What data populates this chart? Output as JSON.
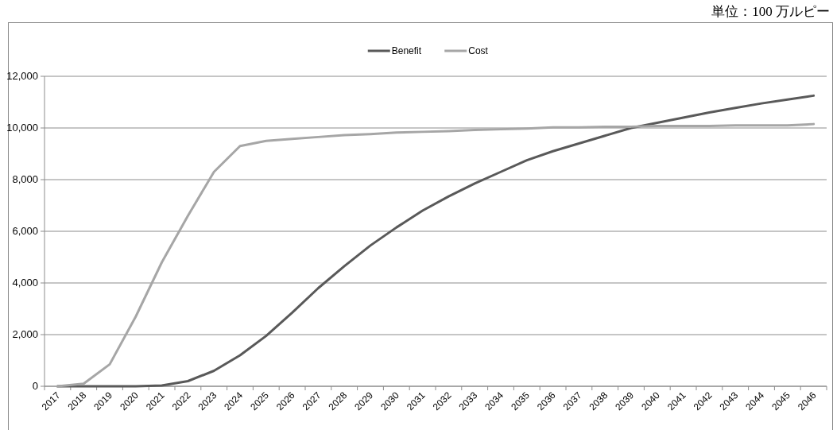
{
  "chart_data": {
    "type": "line",
    "annotations": [
      "単位：100 万ルピー"
    ],
    "categories": [
      "2017",
      "2018",
      "2019",
      "2020",
      "2021",
      "2022",
      "2023",
      "2024",
      "2025",
      "2026",
      "2027",
      "2028",
      "2029",
      "2030",
      "2031",
      "2032",
      "2033",
      "2034",
      "2035",
      "2036",
      "2037",
      "2038",
      "2039",
      "2040",
      "2041",
      "2042",
      "2043",
      "2044",
      "2045",
      "2046"
    ],
    "series": [
      {
        "name": "Benefit",
        "color": "#595959",
        "values": [
          0,
          0,
          0,
          0,
          30,
          200,
          600,
          1200,
          1950,
          2850,
          3800,
          4650,
          5450,
          6150,
          6800,
          7350,
          7850,
          8300,
          8750,
          9100,
          9400,
          9700,
          10000,
          10200,
          10400,
          10600,
          10780,
          10950,
          11100,
          11250
        ]
      },
      {
        "name": "Cost",
        "color": "#a6a6a6",
        "values": [
          0,
          100,
          850,
          2700,
          4800,
          6600,
          8300,
          9300,
          9500,
          9580,
          9650,
          9720,
          9760,
          9820,
          9850,
          9880,
          9920,
          9950,
          9980,
          10020,
          10020,
          10050,
          10050,
          10080,
          10080,
          10080,
          10100,
          10100,
          10100,
          10150
        ]
      }
    ],
    "ylim": [
      0,
      12000
    ],
    "yticks": [
      {
        "value": 0,
        "label": "0"
      },
      {
        "value": 2000,
        "label": "2,000"
      },
      {
        "value": 4000,
        "label": "4,000"
      },
      {
        "value": 6000,
        "label": "6,000"
      },
      {
        "value": 8000,
        "label": "8,000"
      },
      {
        "value": 10000,
        "label": "10,000"
      },
      {
        "value": 12000,
        "label": "12,000"
      }
    ],
    "grid": "y",
    "legend": "top",
    "marker": "none",
    "line_style": "solid"
  }
}
